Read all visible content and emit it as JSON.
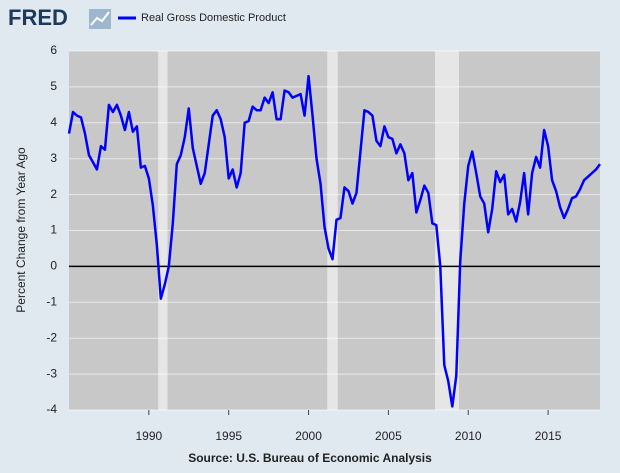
{
  "chart_data": {
    "type": "line",
    "logo": "FRED",
    "ylabel": "Percent Change from Year Ago",
    "source": "Source: U.S. Bureau of Economic Analysis",
    "xlim": [
      1985,
      2018.25
    ],
    "xticks": [
      1990,
      1995,
      2000,
      2005,
      2010,
      2015
    ],
    "ylim": [
      -4,
      6
    ],
    "yticks": [
      -4,
      -3,
      -2,
      -1,
      0,
      1,
      2,
      3,
      4,
      5,
      6
    ],
    "grid": true,
    "recessions": [
      [
        1990.58,
        1991.17
      ],
      [
        2001.17,
        2001.83
      ],
      [
        2007.92,
        2009.42
      ]
    ],
    "x": [
      1985,
      1985.25,
      1985.5,
      1985.75,
      1986,
      1986.25,
      1986.5,
      1986.75,
      1987,
      1987.25,
      1987.5,
      1987.75,
      1988,
      1988.25,
      1988.5,
      1988.75,
      1989,
      1989.25,
      1989.5,
      1989.75,
      1990,
      1990.25,
      1990.5,
      1990.75,
      1991,
      1991.25,
      1991.5,
      1991.75,
      1992,
      1992.25,
      1992.5,
      1992.75,
      1993,
      1993.25,
      1993.5,
      1993.75,
      1994,
      1994.25,
      1994.5,
      1994.75,
      1995,
      1995.25,
      1995.5,
      1995.75,
      1996,
      1996.25,
      1996.5,
      1996.75,
      1997,
      1997.25,
      1997.5,
      1997.75,
      1998,
      1998.25,
      1998.5,
      1998.75,
      1999,
      1999.25,
      1999.5,
      1999.75,
      2000,
      2000.25,
      2000.5,
      2000.75,
      2001,
      2001.25,
      2001.5,
      2001.75,
      2002,
      2002.25,
      2002.5,
      2002.75,
      2003,
      2003.25,
      2003.5,
      2003.75,
      2004,
      2004.25,
      2004.5,
      2004.75,
      2005,
      2005.25,
      2005.5,
      2005.75,
      2006,
      2006.25,
      2006.5,
      2006.75,
      2007,
      2007.25,
      2007.5,
      2007.75,
      2008,
      2008.25,
      2008.5,
      2008.75,
      2009,
      2009.25,
      2009.5,
      2009.75,
      2010,
      2010.25,
      2010.5,
      2010.75,
      2011,
      2011.25,
      2011.5,
      2011.75,
      2012,
      2012.25,
      2012.5,
      2012.75,
      2013,
      2013.25,
      2013.5,
      2013.75,
      2014,
      2014.25,
      2014.5,
      2014.75,
      2015,
      2015.25,
      2015.5,
      2015.75,
      2016,
      2016.25,
      2016.5,
      2016.75,
      2017,
      2017.25,
      2017.5,
      2017.75,
      2018,
      2018.25
    ],
    "series": [
      {
        "name": "Real Gross Domestic Product",
        "color": "#0000ff",
        "values": [
          3.7,
          4.3,
          4.2,
          4.15,
          3.7,
          3.1,
          2.9,
          2.7,
          3.35,
          3.25,
          4.5,
          4.3,
          4.5,
          4.2,
          3.8,
          4.3,
          3.75,
          3.9,
          2.75,
          2.8,
          2.45,
          1.7,
          0.6,
          -0.9,
          -0.5,
          0.0,
          1.2,
          2.85,
          3.1,
          3.6,
          4.4,
          3.3,
          2.8,
          2.3,
          2.6,
          3.4,
          4.2,
          4.35,
          4.1,
          3.6,
          2.45,
          2.7,
          2.2,
          2.6,
          4.0,
          4.05,
          4.45,
          4.35,
          4.35,
          4.7,
          4.55,
          4.85,
          4.1,
          4.1,
          4.9,
          4.85,
          4.7,
          4.75,
          4.8,
          4.2,
          5.3,
          4.2,
          3.0,
          2.3,
          1.1,
          0.5,
          0.2,
          1.3,
          1.35,
          2.2,
          2.1,
          1.75,
          2.05,
          3.2,
          4.35,
          4.3,
          4.2,
          3.5,
          3.35,
          3.9,
          3.6,
          3.55,
          3.15,
          3.4,
          3.15,
          2.4,
          2.6,
          1.5,
          1.85,
          2.25,
          2.05,
          1.2,
          1.15,
          0.0,
          -2.75,
          -3.2,
          -3.9,
          -3.05,
          0.15,
          1.75,
          2.8,
          3.2,
          2.6,
          1.95,
          1.75,
          0.95,
          1.6,
          2.65,
          2.35,
          2.55,
          1.45,
          1.6,
          1.25,
          1.8,
          2.6,
          1.45,
          2.6,
          3.05,
          2.75,
          3.8,
          3.35,
          2.4,
          2.1,
          1.65,
          1.35,
          1.6,
          1.9,
          1.95,
          2.15,
          2.4,
          2.5,
          2.6,
          2.7,
          2.85
        ]
      }
    ]
  }
}
